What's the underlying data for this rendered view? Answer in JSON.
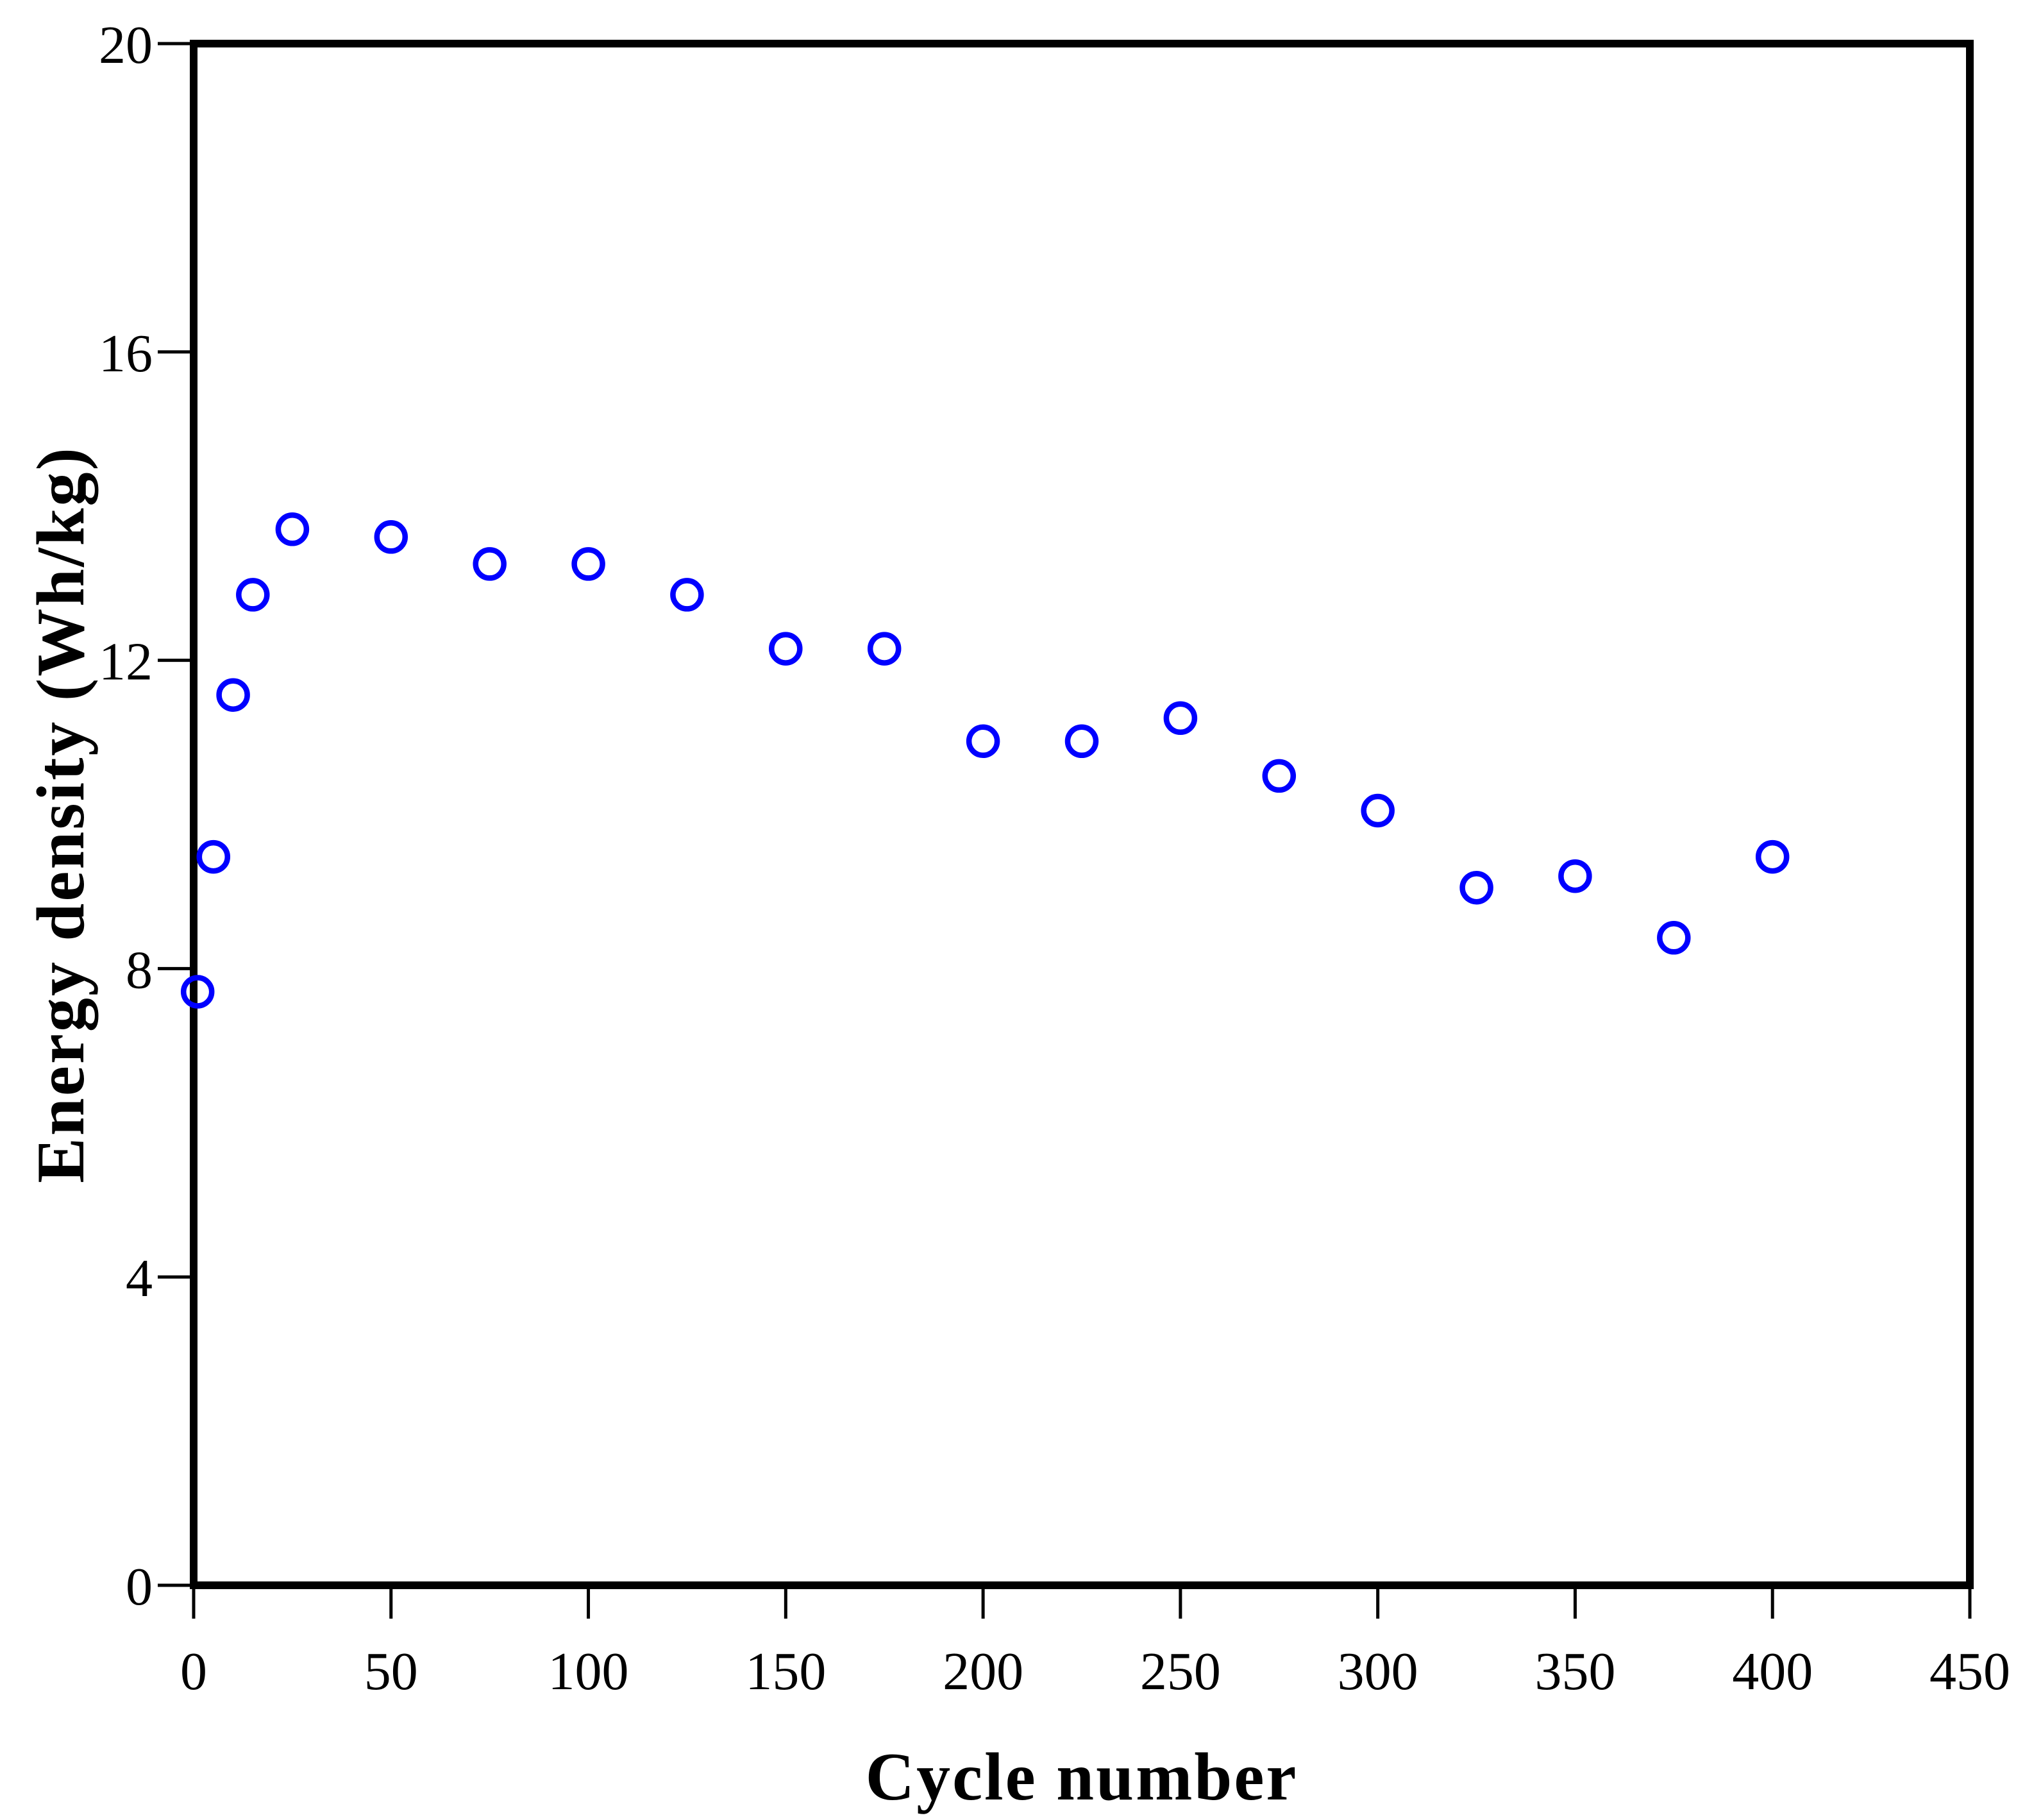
{
  "figure": {
    "background_color": "#ffffff",
    "axis_color": "#000000",
    "marker_color": "#0000ff",
    "marker_style": "open-circle"
  },
  "chart_data": {
    "type": "scatter",
    "title": "",
    "xlabel": "Cycle number",
    "ylabel": "Energy density (Wh/kg)",
    "xlim": [
      0,
      450
    ],
    "ylim": [
      0,
      20
    ],
    "xticks": [
      0,
      50,
      100,
      150,
      200,
      250,
      300,
      350,
      400,
      450
    ],
    "yticks": [
      0,
      4,
      8,
      12,
      16,
      20
    ],
    "grid": false,
    "legend_position": "none",
    "series": [
      {
        "name": "Energy density",
        "x": [
          1,
          5,
          10,
          15,
          25,
          50,
          75,
          100,
          125,
          150,
          175,
          200,
          225,
          250,
          275,
          300,
          325,
          350,
          375,
          400
        ],
        "y": [
          7.7,
          9.45,
          11.55,
          12.85,
          13.7,
          13.6,
          13.25,
          13.25,
          12.85,
          12.15,
          12.15,
          10.95,
          10.95,
          11.25,
          10.5,
          10.05,
          9.05,
          9.2,
          8.4,
          9.45
        ]
      }
    ]
  }
}
